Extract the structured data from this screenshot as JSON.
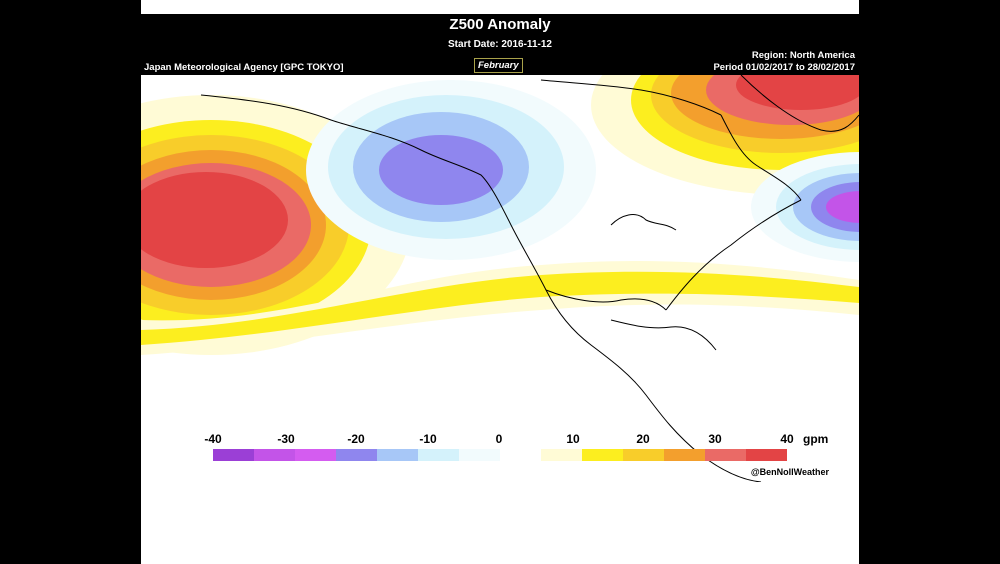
{
  "header": {
    "title": "Z500 Anomaly",
    "start_date": "Start Date: 2016-11-12",
    "agency": "Japan Meteorological Agency [GPC TOKYO]",
    "month": "February",
    "region": "Region: North America",
    "period": "Period 01/02/2017 to 28/02/2017"
  },
  "legend": {
    "labels": [
      "-40",
      "-30",
      "-20",
      "-10",
      "0",
      "10",
      "20",
      "30",
      "40"
    ],
    "unit": "gpm",
    "colors": [
      "#9b3fd6",
      "#c354e8",
      "#d45cf0",
      "#8f86ee",
      "#a7c7f7",
      "#d4f2fb",
      "#f2fbfd",
      "#ffffff",
      "#fffbd6",
      "#fcee1f",
      "#f8cd2a",
      "#f39f2d",
      "#ea6a66",
      "#e34445"
    ]
  },
  "credit": "@BenNollWeather",
  "map": {
    "features": [
      "north-pacific-positive-anomaly",
      "alaska-negative-anomaly",
      "northeast-canada-positive-anomaly",
      "north-atlantic-negative-anomaly",
      "subtropical-positive-band"
    ]
  }
}
